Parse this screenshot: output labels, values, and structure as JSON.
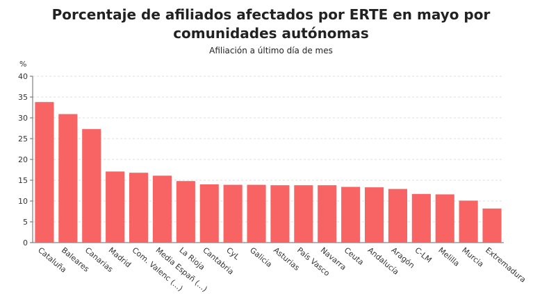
{
  "chart_data": {
    "type": "bar",
    "title": "Porcentaje de afiliados afectados por ERTE en mayo por comunidades autónomas",
    "subtitle": "Afiliación a último día de mes",
    "y_label": "%",
    "categories": [
      "Cataluña",
      "Baleares",
      "Canarias",
      "Madrid",
      "Com. Valenc (...)",
      "Media Españ (...)",
      "La Rioja",
      "Cantabria",
      "CyL",
      "Galicia",
      "Asturias",
      "País Vasco",
      "Navarra",
      "Ceuta",
      "Andalucía",
      "Aragón",
      "C-LM",
      "Melilla",
      "Murcia",
      "Extremadura"
    ],
    "values": [
      33.8,
      30.9,
      27.3,
      17.1,
      16.8,
      16.1,
      14.8,
      14.0,
      13.9,
      13.9,
      13.8,
      13.8,
      13.8,
      13.4,
      13.3,
      12.9,
      11.7,
      11.6,
      10.1,
      8.2
    ],
    "color": "#f86464",
    "ylim": [
      0,
      40
    ],
    "yticks": [
      0,
      5,
      10,
      15,
      20,
      25,
      30,
      35,
      40
    ],
    "grid": true
  }
}
